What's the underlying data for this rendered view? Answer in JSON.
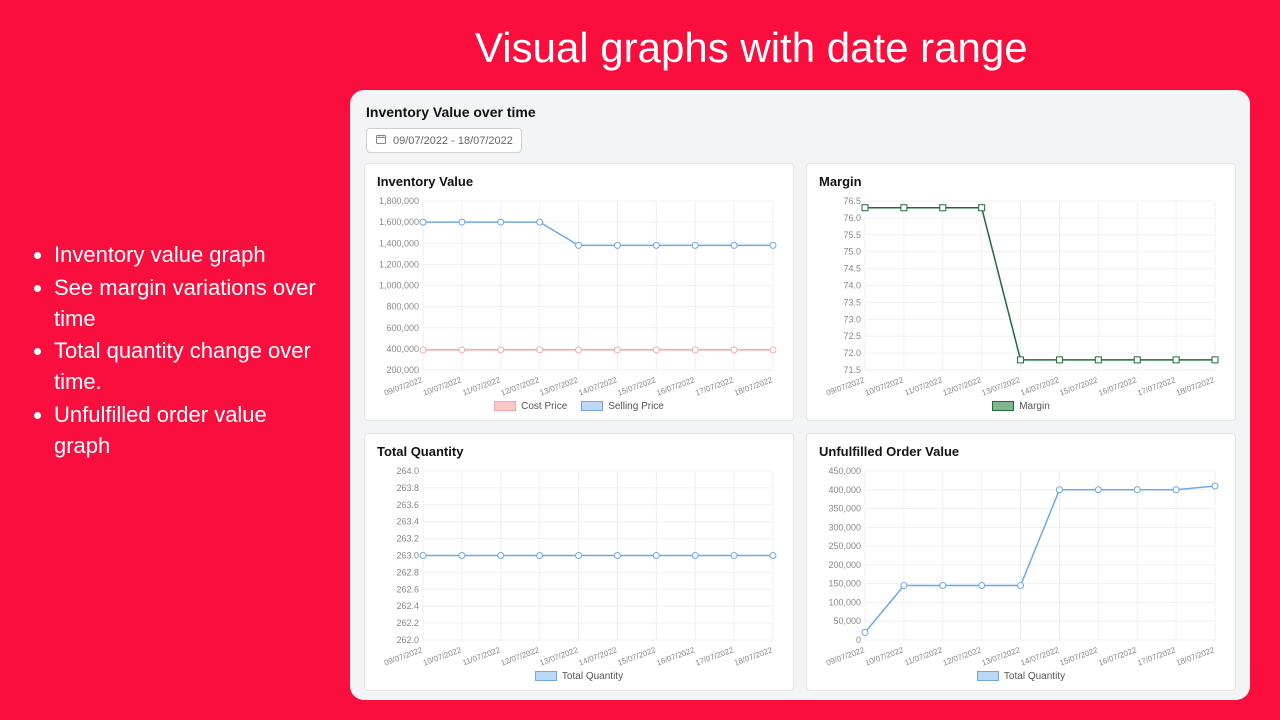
{
  "page": {
    "background_color": "#f90e3d",
    "headline": "Visual graphs with date range",
    "headline_fontsize": 42,
    "headline_color": "#ffffff"
  },
  "bullets": [
    "Inventory value graph",
    "See margin variations over time",
    "Total quantity change over time.",
    "Unfulfilled order value graph"
  ],
  "panel": {
    "title": "Inventory Value over time",
    "date_range_label": "09/07/2022 - 18/07/2022",
    "background_color": "#f3f4f6",
    "card_background": "#ffffff",
    "card_border_color": "#e5e5e5"
  },
  "x_categories": [
    "09/07/2022",
    "10/07/2022",
    "11/07/2022",
    "12/07/2022",
    "13/07/2022",
    "14/07/2022",
    "15/07/2022",
    "16/07/2022",
    "17/07/2022",
    "18/07/2022"
  ],
  "charts": {
    "inventory_value": {
      "title": "Inventory Value",
      "y_min": 200000,
      "y_max": 1800000,
      "y_step": 200000,
      "y_format": "comma",
      "grid_color": "#f0f0f0",
      "x_label_rotate": -20,
      "series": [
        {
          "name": "Cost Price",
          "color": "#f4a8a8",
          "fill": "#ffffff",
          "marker": "circle",
          "values": [
            390000,
            390000,
            390000,
            390000,
            390000,
            390000,
            390000,
            390000,
            390000,
            390000
          ]
        },
        {
          "name": "Selling Price",
          "color": "#6ea8e6",
          "fill": "#ffffff",
          "marker": "circle",
          "values": [
            1600000,
            1600000,
            1600000,
            1600000,
            1380000,
            1380000,
            1380000,
            1380000,
            1380000,
            1380000
          ]
        }
      ],
      "legend_swatch_fill": [
        "#f9c9c9",
        "#bcd8f5"
      ]
    },
    "margin": {
      "title": "Margin",
      "y_min": 71.5,
      "y_max": 76.5,
      "y_step": 0.5,
      "y_format": "decimal1",
      "grid_color": "#f0f0f0",
      "x_label_rotate": -20,
      "series": [
        {
          "name": "Margin",
          "color": "#1f6b3a",
          "fill": "#ffffff",
          "marker": "square",
          "values": [
            76.3,
            76.3,
            76.3,
            76.3,
            71.8,
            71.8,
            71.8,
            71.8,
            71.8,
            71.8
          ]
        }
      ],
      "legend_swatch_fill": [
        "#7fb58e"
      ]
    },
    "total_quantity": {
      "title": "Total Quantity",
      "y_min": 262.0,
      "y_max": 264.0,
      "y_step": 0.2,
      "y_format": "decimal1",
      "grid_color": "#f0f0f0",
      "x_label_rotate": -20,
      "series": [
        {
          "name": "Total Quantity",
          "color": "#6ea8e6",
          "fill": "#ffffff",
          "marker": "circle",
          "values": [
            263.0,
            263.0,
            263.0,
            263.0,
            263.0,
            263.0,
            263.0,
            263.0,
            263.0,
            263.0
          ]
        }
      ],
      "legend_swatch_fill": [
        "#bcd8f5"
      ]
    },
    "unfulfilled": {
      "title": "Unfulfilled Order Value",
      "y_min": 0,
      "y_max": 450000,
      "y_step": 50000,
      "y_format": "comma",
      "grid_color": "#f0f0f0",
      "x_label_rotate": -20,
      "series": [
        {
          "name": "Total Quantity",
          "color": "#6ea8e6",
          "fill": "#ffffff",
          "marker": "circle",
          "values": [
            20000,
            145000,
            145000,
            145000,
            145000,
            400000,
            400000,
            400000,
            400000,
            410000
          ]
        }
      ],
      "legend_swatch_fill": [
        "#bcd8f5"
      ]
    }
  }
}
